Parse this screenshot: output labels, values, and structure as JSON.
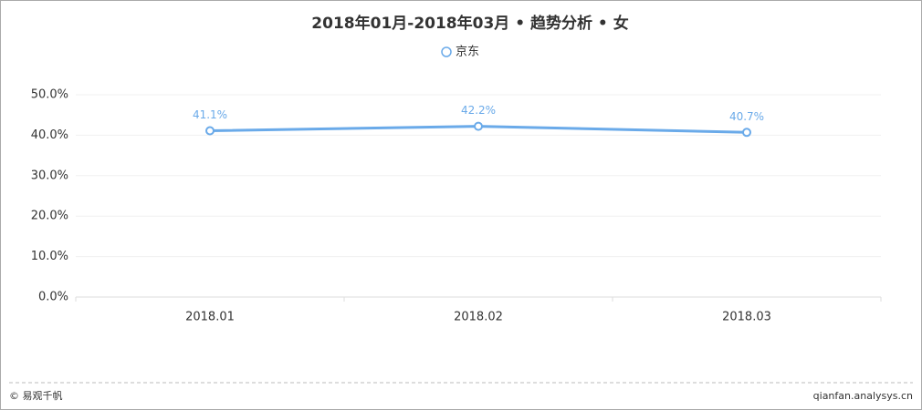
{
  "chart_data": {
    "type": "line",
    "title": "2018年01月-2018年03月 • 趋势分析 • 女",
    "categories": [
      "2018.01",
      "2018.02",
      "2018.03"
    ],
    "series": [
      {
        "name": "京东",
        "color": "#6aaae9",
        "values": [
          41.1,
          42.2,
          40.7
        ],
        "value_labels": [
          "41.1%",
          "42.2%",
          "40.7%"
        ]
      }
    ],
    "ylim": [
      0,
      50
    ],
    "yticks": [
      {
        "value": 0,
        "label": "0.0%"
      },
      {
        "value": 10,
        "label": "10.0%"
      },
      {
        "value": 20,
        "label": "20.0%"
      },
      {
        "value": 30,
        "label": "30.0%"
      },
      {
        "value": 40,
        "label": "40.0%"
      },
      {
        "value": 50,
        "label": "50.0%"
      }
    ],
    "grid": true
  },
  "footer": {
    "left": "© 易观千帆",
    "right": "qianfan.analysys.cn"
  }
}
